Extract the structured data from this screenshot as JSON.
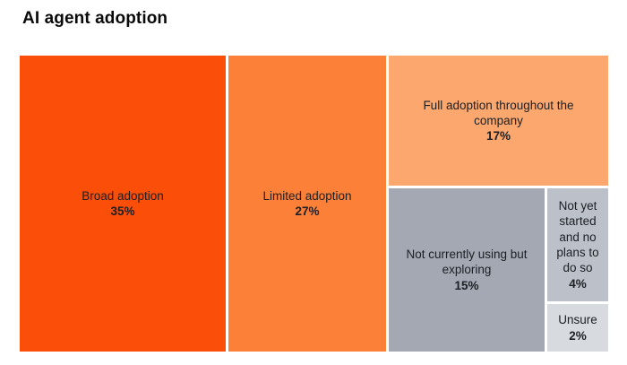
{
  "title": "AI agent adoption",
  "chart_data": {
    "type": "treemap",
    "title": "AI agent adoption",
    "unit": "%",
    "legend": "none",
    "categories": [
      "Broad adoption",
      "Limited adoption",
      "Full adoption throughout the company",
      "Not currently using but exploring",
      "Not yet started and no plans to do so",
      "Unsure"
    ],
    "values": [
      35,
      27,
      17,
      15,
      4,
      2
    ],
    "text_color": "#1c1f24",
    "background": "#ffffff",
    "blocks": [
      {
        "label": "Broad adoption",
        "value": 35,
        "value_label": "35%",
        "color": "#fb4e09"
      },
      {
        "label": "Limited adoption",
        "value": 27,
        "value_label": "27%",
        "color": "#fc8038"
      },
      {
        "label": "Full adoption throughout the company",
        "value": 17,
        "value_label": "17%",
        "color": "#fba76e"
      },
      {
        "label": "Not currently using but exploring",
        "value": 15,
        "value_label": "15%",
        "color": "#a3a8b2"
      },
      {
        "label": "Not yet started and no plans to do so",
        "value": 4,
        "value_label": "4%",
        "color": "#bcc1c9"
      },
      {
        "label": "Unsure",
        "value": 2,
        "value_label": "2%",
        "color": "#d7dade"
      }
    ]
  }
}
